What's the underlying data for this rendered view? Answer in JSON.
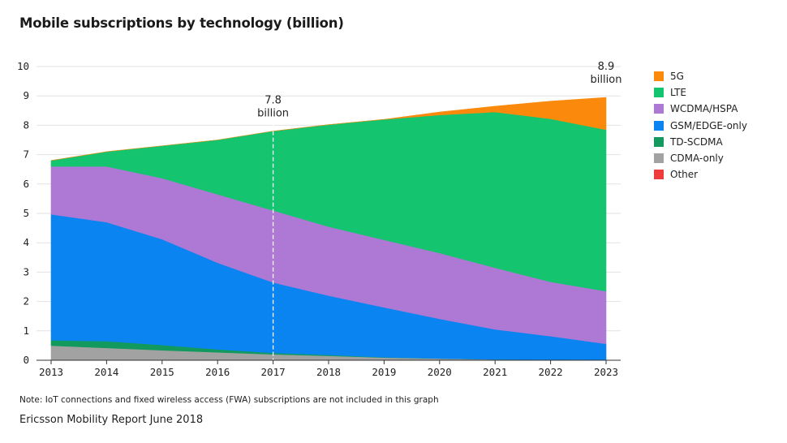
{
  "chart_data": {
    "type": "area",
    "title": "Mobile subscriptions by technology (billion)",
    "x": [
      2013,
      2014,
      2015,
      2016,
      2017,
      2018,
      2019,
      2020,
      2021,
      2022,
      2023
    ],
    "ylim": [
      0,
      10
    ],
    "yticks": [
      0,
      1,
      2,
      3,
      4,
      5,
      6,
      7,
      8,
      9,
      10
    ],
    "series": [
      {
        "name": "Other",
        "color": "#ee3b3b",
        "values": [
          0.02,
          0.02,
          0.02,
          0.02,
          0.02,
          0.02,
          0.01,
          0.01,
          0.0,
          0.0,
          0.0
        ]
      },
      {
        "name": "CDMA-only",
        "color": "#a2a2a2",
        "values": [
          0.48,
          0.4,
          0.32,
          0.25,
          0.18,
          0.13,
          0.08,
          0.05,
          0.03,
          0.02,
          0.01
        ]
      },
      {
        "name": "TD-SCDMA",
        "color": "#12995e",
        "values": [
          0.18,
          0.23,
          0.18,
          0.1,
          0.05,
          0.03,
          0.01,
          0.0,
          0.0,
          0.0,
          0.0
        ]
      },
      {
        "name": "GSM/EDGE-only",
        "color": "#0a84f0",
        "values": [
          4.29,
          4.05,
          3.6,
          2.95,
          2.4,
          2.02,
          1.7,
          1.35,
          1.02,
          0.8,
          0.55
        ]
      },
      {
        "name": "WCDMA/HSPA",
        "color": "#ad79d4",
        "values": [
          1.63,
          1.9,
          2.08,
          2.33,
          2.45,
          2.35,
          2.3,
          2.24,
          2.1,
          1.85,
          1.79
        ]
      },
      {
        "name": "LTE",
        "color": "#14c46e",
        "values": [
          0.2,
          0.5,
          1.1,
          1.85,
          2.7,
          3.47,
          4.1,
          4.7,
          5.3,
          5.55,
          5.5
        ]
      },
      {
        "name": "5G",
        "color": "#fb8a0c",
        "values": [
          0.0,
          0.0,
          0.0,
          0.0,
          0.0,
          0.0,
          0.0,
          0.1,
          0.2,
          0.6,
          1.1
        ]
      }
    ],
    "annotations": [
      {
        "x": 2017,
        "line1": "7.8",
        "line2": "billion",
        "dashed_line": true
      },
      {
        "x": 2023,
        "line1": "8.9",
        "line2": "billion",
        "dashed_line": false
      }
    ],
    "legend_order": [
      "5G",
      "LTE",
      "WCDMA/HSPA",
      "GSM/EDGE-only",
      "TD-SCDMA",
      "CDMA-only",
      "Other"
    ],
    "legend_position": "right"
  },
  "footnote": "Note: IoT connections and fixed wireless access (FWA) subscriptions are not included in this graph",
  "source": "Ericsson Mobility Report June 2018"
}
